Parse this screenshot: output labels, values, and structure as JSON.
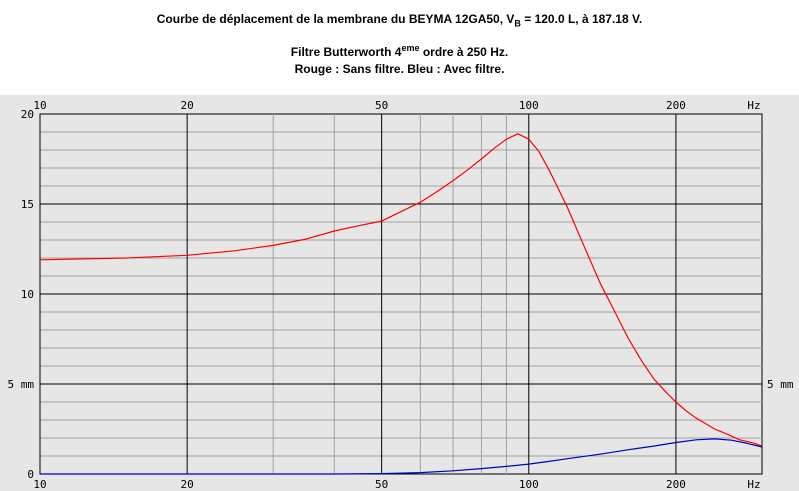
{
  "header": {
    "line1_prefix": "Courbe de déplacement de la membrane du BEYMA 12GA50, V",
    "line1_sub": "B",
    "line1_suffix": " = 120.0 L, à 187.18 V.",
    "line2_prefix": "Filtre Butterworth 4",
    "line2_sup": "eme",
    "line2_suffix": " ordre à 250 Hz.",
    "line3": "Rouge : Sans filtre. Bleu : Avec filtre."
  },
  "chart_data": {
    "type": "line",
    "x_scale": "log",
    "xlim": [
      10,
      300
    ],
    "ylim": [
      0,
      20
    ],
    "grid": true,
    "x_major_ticks": [
      {
        "value": 10,
        "label": "10"
      },
      {
        "value": 20,
        "label": "20"
      },
      {
        "value": 50,
        "label": "50"
      },
      {
        "value": 100,
        "label": "100"
      },
      {
        "value": 200,
        "label": "200"
      }
    ],
    "x_unit_label": "Hz",
    "y_ticks": [
      {
        "value": 0,
        "label": "0"
      },
      {
        "value": 5,
        "label": "5 mm"
      },
      {
        "value": 10,
        "label": "10"
      },
      {
        "value": 15,
        "label": "15"
      },
      {
        "value": 20,
        "label": "20"
      }
    ],
    "y_right_label": {
      "value": 5,
      "label": "5 mm"
    },
    "colors": {
      "background": "#e6e6e6",
      "grid_major": "#000000",
      "grid_minor": "#a0a0a0",
      "red": "#ff0000",
      "blue": "#0000c0"
    },
    "series": [
      {
        "color": "#ff0000",
        "x": [
          10,
          15,
          20,
          25,
          30,
          35,
          40,
          45,
          50,
          55,
          60,
          65,
          70,
          75,
          80,
          85,
          90,
          95,
          100,
          105,
          110,
          120,
          130,
          140,
          150,
          160,
          170,
          180,
          190,
          200,
          210,
          220,
          230,
          240,
          250,
          260,
          270,
          280,
          290,
          300
        ],
        "y": [
          11.9,
          12.0,
          12.15,
          12.4,
          12.7,
          13.05,
          13.5,
          13.8,
          14.05,
          14.6,
          15.1,
          15.7,
          16.3,
          16.9,
          17.5,
          18.1,
          18.6,
          18.9,
          18.6,
          17.9,
          16.9,
          14.8,
          12.6,
          10.6,
          9.0,
          7.5,
          6.3,
          5.3,
          4.6,
          4.0,
          3.5,
          3.1,
          2.8,
          2.5,
          2.3,
          2.1,
          1.9,
          1.8,
          1.7,
          1.55
        ]
      },
      {
        "color": "#0000c0",
        "x": [
          10,
          20,
          30,
          40,
          50,
          55,
          60,
          70,
          80,
          90,
          100,
          110,
          120,
          140,
          160,
          180,
          200,
          220,
          240,
          260,
          280,
          300
        ],
        "y": [
          0.0,
          0.0,
          0.0,
          0.0,
          0.02,
          0.05,
          0.08,
          0.18,
          0.3,
          0.42,
          0.55,
          0.7,
          0.85,
          1.1,
          1.35,
          1.55,
          1.75,
          1.9,
          1.95,
          1.88,
          1.7,
          1.5
        ]
      }
    ]
  }
}
